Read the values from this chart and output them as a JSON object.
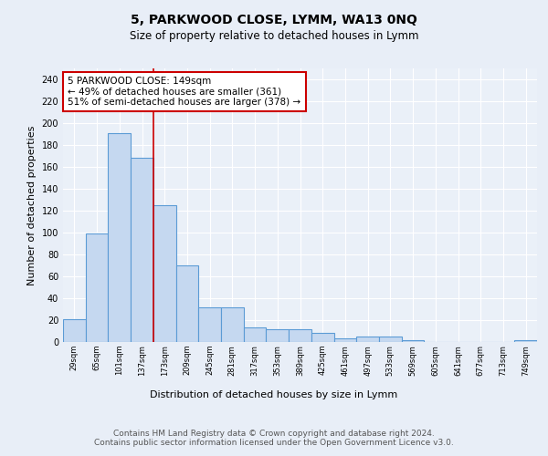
{
  "title": "5, PARKWOOD CLOSE, LYMM, WA13 0NQ",
  "subtitle": "Size of property relative to detached houses in Lymm",
  "xlabel": "Distribution of detached houses by size in Lymm",
  "ylabel": "Number of detached properties",
  "bar_labels": [
    "29sqm",
    "65sqm",
    "101sqm",
    "137sqm",
    "173sqm",
    "209sqm",
    "245sqm",
    "281sqm",
    "317sqm",
    "353sqm",
    "389sqm",
    "425sqm",
    "461sqm",
    "497sqm",
    "533sqm",
    "569sqm",
    "605sqm",
    "641sqm",
    "677sqm",
    "713sqm",
    "749sqm"
  ],
  "bar_values": [
    21,
    99,
    191,
    168,
    125,
    70,
    32,
    32,
    13,
    12,
    12,
    8,
    3,
    5,
    5,
    2,
    0,
    0,
    0,
    0,
    2
  ],
  "bar_color": "#c5d8f0",
  "bar_edge_color": "#5b9bd5",
  "bar_edge_width": 0.8,
  "vline_x": 3.5,
  "vline_color": "#cc0000",
  "annotation_text": "5 PARKWOOD CLOSE: 149sqm\n← 49% of detached houses are smaller (361)\n51% of semi-detached houses are larger (378) →",
  "annotation_box_color": "#ffffff",
  "annotation_box_edge_color": "#cc0000",
  "annotation_fontsize": 7.5,
  "ylim": [
    0,
    250
  ],
  "yticks": [
    0,
    20,
    40,
    60,
    80,
    100,
    120,
    140,
    160,
    180,
    200,
    220,
    240
  ],
  "background_color": "#e8eef7",
  "plot_background_color": "#eaf0f8",
  "grid_color": "#ffffff",
  "footer_text": "Contains HM Land Registry data © Crown copyright and database right 2024.\nContains public sector information licensed under the Open Government Licence v3.0.",
  "title_fontsize": 10,
  "subtitle_fontsize": 8.5,
  "xlabel_fontsize": 8,
  "ylabel_fontsize": 8,
  "footer_fontsize": 6.5,
  "tick_fontsize": 7,
  "xtick_fontsize": 6
}
